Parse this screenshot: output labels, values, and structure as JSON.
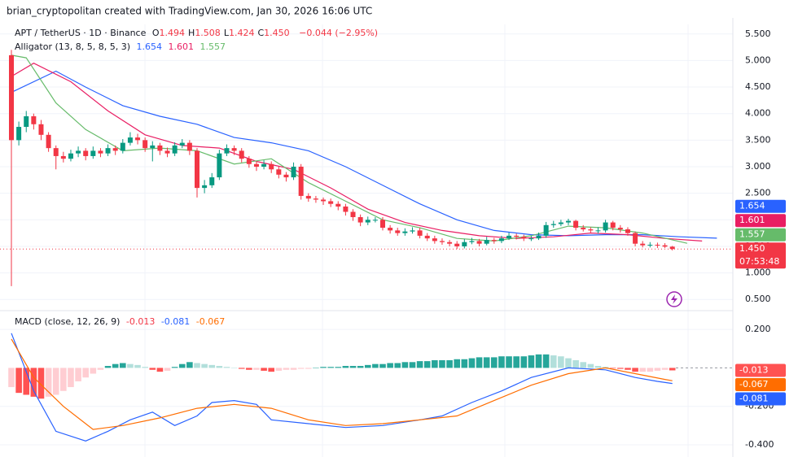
{
  "watermark": "brian_cryptopolitan created with TradingView.com, Jan 30, 2026 16:06 UTC",
  "chart_data": [
    {
      "type": "candlestick",
      "ohlc_legend": {
        "symbol": "APT / TetherUS · 1D · Binance",
        "ohlc": [
          {
            "key": "O",
            "value": "1.494"
          },
          {
            "key": "H",
            "value": "1.508"
          },
          {
            "key": "L",
            "value": "1.424"
          },
          {
            "key": "C",
            "value": "1.450"
          }
        ],
        "change": "−0.044 (−2.95%)"
      },
      "indicator": "Alligator (13, 8, 5, 8, 5, 3)",
      "countdown": "07:53:48",
      "up_color": "#089981",
      "down_color": "#f23645",
      "open": [
        5.1,
        3.5,
        3.75,
        3.95,
        3.8,
        3.6,
        3.35,
        3.2,
        3.15,
        3.25,
        3.3,
        3.2,
        3.3,
        3.25,
        3.35,
        3.3,
        3.45,
        3.55,
        3.5,
        3.35,
        3.4,
        3.3,
        3.25,
        3.4,
        3.45,
        3.3,
        2.6,
        2.65,
        2.8,
        3.25,
        3.35,
        3.3,
        3.15,
        3.05,
        3.0,
        3.05,
        2.95,
        2.85,
        2.8,
        3.0,
        2.45,
        2.4,
        2.38,
        2.35,
        2.3,
        2.25,
        2.15,
        2.05,
        1.95,
        2.0,
        2.0,
        1.85,
        1.8,
        1.75,
        1.78,
        1.8,
        1.7,
        1.65,
        1.6,
        1.58,
        1.55,
        1.5,
        1.58,
        1.6,
        1.55,
        1.62,
        1.6,
        1.65,
        1.7,
        1.68,
        1.65,
        1.65,
        1.7,
        1.9,
        1.92,
        1.95,
        1.98,
        1.85,
        1.82,
        1.8,
        1.8,
        1.95,
        1.85,
        1.82,
        1.75,
        1.55,
        1.52,
        1.53,
        1.52,
        1.494
      ],
      "high": [
        5.2,
        3.85,
        4.05,
        4.0,
        3.88,
        3.65,
        3.4,
        3.28,
        3.32,
        3.38,
        3.35,
        3.38,
        3.35,
        3.42,
        3.4,
        3.52,
        3.65,
        3.62,
        3.55,
        3.48,
        3.45,
        3.36,
        3.46,
        3.52,
        3.5,
        3.35,
        2.75,
        2.88,
        3.32,
        3.42,
        3.4,
        3.35,
        3.2,
        3.1,
        3.12,
        3.1,
        3.0,
        2.9,
        3.08,
        3.05,
        2.5,
        2.45,
        2.42,
        2.4,
        2.35,
        2.3,
        2.2,
        2.1,
        2.06,
        2.05,
        2.05,
        1.9,
        1.85,
        1.84,
        1.86,
        1.85,
        1.75,
        1.7,
        1.65,
        1.62,
        1.6,
        1.64,
        1.66,
        1.64,
        1.68,
        1.66,
        1.7,
        1.76,
        1.74,
        1.72,
        1.7,
        1.76,
        1.96,
        1.98,
        2.0,
        2.02,
        2.0,
        1.9,
        1.86,
        1.86,
        2.0,
        1.98,
        1.9,
        1.86,
        1.78,
        1.6,
        1.58,
        1.57,
        1.56,
        1.508
      ],
      "low": [
        0.75,
        3.4,
        3.65,
        3.7,
        3.5,
        3.28,
        2.95,
        3.08,
        3.1,
        3.18,
        3.12,
        3.15,
        3.18,
        3.2,
        3.22,
        3.25,
        3.4,
        3.42,
        3.28,
        3.1,
        3.22,
        3.18,
        3.2,
        3.35,
        3.22,
        2.42,
        2.5,
        2.6,
        2.75,
        3.2,
        3.22,
        3.08,
        2.98,
        2.92,
        2.95,
        2.88,
        2.78,
        2.72,
        2.75,
        2.38,
        2.34,
        2.32,
        2.28,
        2.24,
        2.18,
        2.08,
        1.98,
        1.88,
        1.9,
        1.95,
        1.8,
        1.74,
        1.7,
        1.7,
        1.74,
        1.65,
        1.6,
        1.55,
        1.53,
        1.5,
        1.45,
        1.46,
        1.54,
        1.5,
        1.52,
        1.55,
        1.56,
        1.62,
        1.63,
        1.6,
        1.6,
        1.62,
        1.66,
        1.85,
        1.88,
        1.9,
        1.8,
        1.78,
        1.75,
        1.74,
        1.76,
        1.8,
        1.76,
        1.7,
        1.5,
        1.48,
        1.48,
        1.47,
        1.47,
        1.424
      ],
      "close": [
        3.5,
        3.75,
        3.95,
        3.8,
        3.6,
        3.35,
        3.2,
        3.15,
        3.25,
        3.3,
        3.2,
        3.3,
        3.25,
        3.35,
        3.3,
        3.45,
        3.55,
        3.5,
        3.35,
        3.4,
        3.3,
        3.25,
        3.4,
        3.45,
        3.3,
        2.6,
        2.65,
        2.8,
        3.25,
        3.35,
        3.3,
        3.15,
        3.05,
        3.0,
        3.05,
        2.95,
        2.85,
        2.8,
        3.0,
        2.45,
        2.4,
        2.38,
        2.35,
        2.3,
        2.25,
        2.15,
        2.05,
        1.95,
        2.0,
        2.0,
        1.85,
        1.8,
        1.75,
        1.78,
        1.8,
        1.7,
        1.65,
        1.6,
        1.58,
        1.55,
        1.5,
        1.58,
        1.6,
        1.55,
        1.62,
        1.6,
        1.65,
        1.7,
        1.68,
        1.65,
        1.65,
        1.7,
        1.9,
        1.92,
        1.95,
        1.98,
        1.85,
        1.82,
        1.8,
        1.8,
        1.95,
        1.85,
        1.82,
        1.75,
        1.55,
        1.52,
        1.53,
        1.52,
        1.494,
        1.45
      ],
      "series": [
        {
          "color": "#2962ff",
          "x": [
            0,
            6,
            10,
            15,
            20,
            25,
            30,
            35,
            40,
            45,
            50,
            55,
            60,
            65,
            70,
            75,
            80,
            85,
            90,
            95
          ],
          "values": [
            4.4,
            4.8,
            4.5,
            4.15,
            3.95,
            3.8,
            3.55,
            3.45,
            3.3,
            3.0,
            2.65,
            2.3,
            2.0,
            1.8,
            1.72,
            1.7,
            1.72,
            1.72,
            1.68,
            1.654
          ]
        },
        {
          "color": "#e91e63",
          "x": [
            0,
            3,
            8,
            13,
            18,
            23,
            28,
            33,
            38,
            43,
            48,
            53,
            58,
            63,
            68,
            73,
            78,
            83,
            88,
            93
          ],
          "values": [
            4.7,
            4.95,
            4.6,
            4.05,
            3.6,
            3.4,
            3.35,
            3.1,
            2.95,
            2.6,
            2.2,
            1.95,
            1.8,
            1.7,
            1.65,
            1.68,
            1.75,
            1.72,
            1.65,
            1.601
          ]
        },
        {
          "color": "#66bb6a",
          "x": [
            0,
            2,
            6,
            10,
            15,
            20,
            25,
            30,
            35,
            40,
            45,
            50,
            55,
            60,
            65,
            70,
            75,
            80,
            85,
            91
          ],
          "values": [
            5.1,
            5.05,
            4.2,
            3.7,
            3.3,
            3.35,
            3.3,
            3.05,
            3.15,
            2.7,
            2.35,
            2.0,
            1.85,
            1.65,
            1.6,
            1.7,
            1.88,
            1.85,
            1.75,
            1.557
          ]
        }
      ],
      "ylim": [
        0.32,
        5.68
      ],
      "yticks": [
        {
          "value": 5.5,
          "label": "5.500"
        },
        {
          "value": 5,
          "label": "5.000"
        },
        {
          "value": 4.5,
          "label": "4.500"
        },
        {
          "value": 4,
          "label": "4.000"
        },
        {
          "value": 3.5,
          "label": "3.500"
        },
        {
          "value": 3,
          "label": "3.000"
        },
        {
          "value": 2.5,
          "label": "2.500"
        },
        {
          "value": 2,
          "label": "2.000"
        },
        {
          "value": 1.5,
          "label": "1.500"
        },
        {
          "value": 1,
          "label": "1.000"
        },
        {
          "value": 0.5,
          "label": "0.500"
        }
      ],
      "grid": true
    },
    {
      "type": "macd",
      "title": "MACD (close, 12, 26, 9)",
      "histogram": {
        "colors": {
          "pos_up": "#26a69a",
          "pos_down": "#b2dfdb",
          "neg_down": "#ff5252",
          "neg_up": "#ffcdd2"
        },
        "values": [
          -0.1,
          -0.13,
          -0.14,
          -0.15,
          -0.16,
          -0.15,
          -0.14,
          -0.12,
          -0.1,
          -0.07,
          -0.05,
          -0.03,
          -0.01,
          0.01,
          0.02,
          0.025,
          0.02,
          0.015,
          0.005,
          -0.01,
          -0.02,
          -0.015,
          0.005,
          0.02,
          0.03,
          0.025,
          0.02,
          0.015,
          0.01,
          0.005,
          0.0,
          -0.005,
          -0.01,
          -0.01,
          -0.015,
          -0.02,
          -0.015,
          -0.01,
          -0.01,
          -0.005,
          -0.005,
          0.0,
          0.005,
          0.005,
          0.005,
          0.01,
          0.01,
          0.01,
          0.015,
          0.02,
          0.02,
          0.025,
          0.025,
          0.03,
          0.03,
          0.035,
          0.035,
          0.04,
          0.04,
          0.04,
          0.045,
          0.045,
          0.05,
          0.055,
          0.055,
          0.055,
          0.06,
          0.06,
          0.06,
          0.06,
          0.065,
          0.07,
          0.07,
          0.065,
          0.06,
          0.05,
          0.04,
          0.03,
          0.02,
          0.01,
          0.005,
          -0.003,
          -0.005,
          -0.01,
          -0.02,
          -0.02,
          -0.02,
          -0.015,
          -0.01,
          -0.013
        ]
      },
      "series": [
        {
          "color": "#2962ff",
          "x": [
            0,
            3,
            6,
            10,
            13,
            16,
            19,
            22,
            25,
            27,
            30,
            33,
            35,
            40,
            45,
            50,
            55,
            58,
            62,
            66,
            70,
            75,
            80,
            84,
            87,
            89
          ],
          "values": [
            0.18,
            -0.12,
            -0.33,
            -0.38,
            -0.33,
            -0.27,
            -0.23,
            -0.3,
            -0.25,
            -0.18,
            -0.17,
            -0.19,
            -0.27,
            -0.29,
            -0.31,
            -0.3,
            -0.27,
            -0.25,
            -0.18,
            -0.12,
            -0.05,
            0.0,
            -0.01,
            -0.05,
            -0.07,
            -0.081
          ]
        },
        {
          "color": "#ff6d00",
          "x": [
            0,
            3,
            7,
            11,
            15,
            20,
            25,
            30,
            35,
            40,
            45,
            50,
            55,
            60,
            65,
            70,
            75,
            80,
            84,
            88,
            89
          ],
          "values": [
            0.15,
            -0.05,
            -0.2,
            -0.32,
            -0.3,
            -0.26,
            -0.21,
            -0.19,
            -0.21,
            -0.27,
            -0.3,
            -0.29,
            -0.27,
            -0.25,
            -0.17,
            -0.09,
            -0.03,
            0.0,
            -0.03,
            -0.06,
            -0.067
          ]
        }
      ],
      "ylim": [
        -0.455,
        0.285
      ],
      "yticks": [
        {
          "value": 0.2,
          "label": "0.200"
        },
        {
          "value": -0.2,
          "label": "-0.200"
        },
        {
          "value": -0.4,
          "label": "-0.400"
        }
      ],
      "grid": true
    }
  ]
}
